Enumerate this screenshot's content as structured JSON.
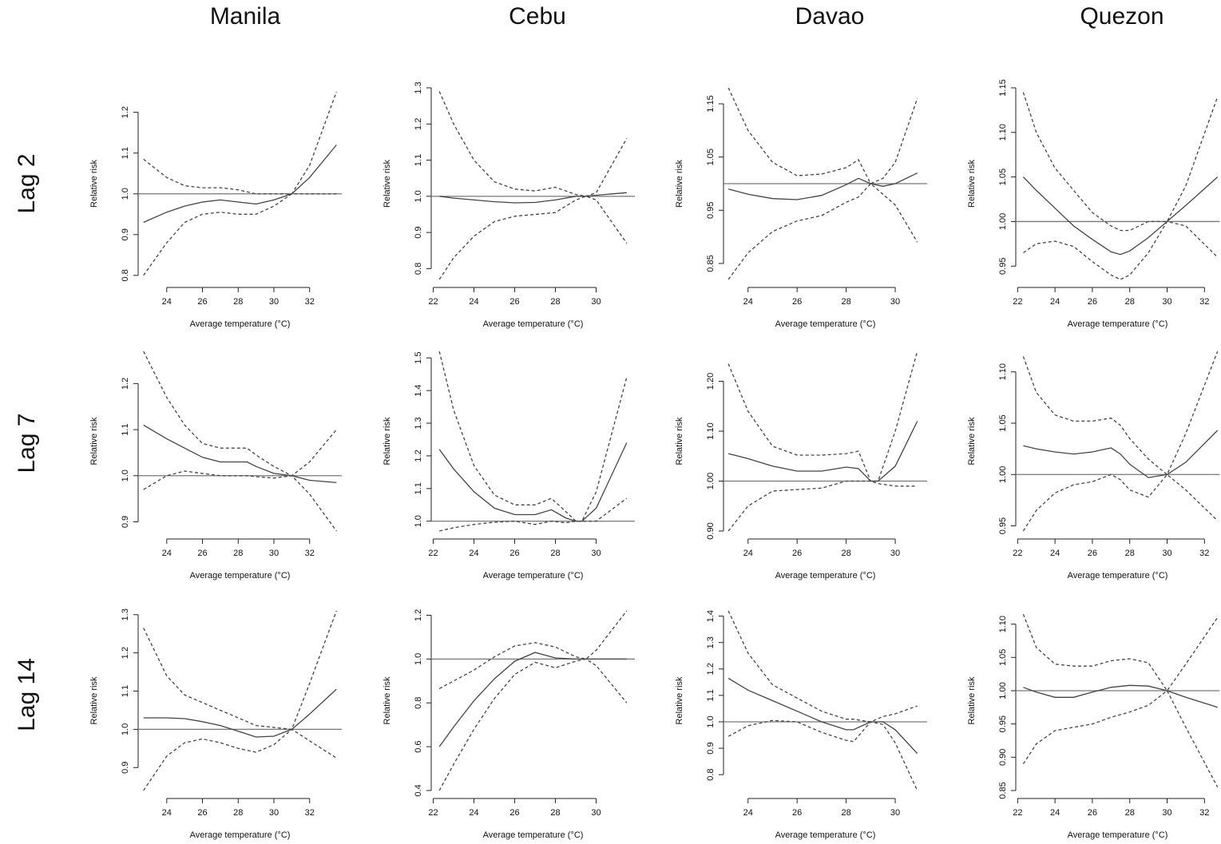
{
  "column_titles": [
    "Manila",
    "Cebu",
    "Davao",
    "Quezon"
  ],
  "row_titles": [
    "Lag 2",
    "Lag 7",
    "Lag 14"
  ],
  "chart_data": [
    {
      "type": "line",
      "xlabel": "Average temperature (°C)",
      "ylabel": "Relative risk",
      "xlim": [
        22.4,
        33.8
      ],
      "xticks": [
        24,
        26,
        28,
        30,
        32
      ],
      "ylim": [
        0.79,
        1.26
      ],
      "yticks": [
        0.8,
        0.9,
        {
          "value": 1,
          "label": "1.0"
        },
        1.1,
        1.2
      ],
      "hline": 1,
      "x": [
        22.7,
        24,
        25,
        26,
        27,
        28,
        29,
        30,
        31,
        32,
        33.5
      ],
      "series": [
        {
          "style": "solid",
          "color": "#444444",
          "values": [
            0.93,
            0.955,
            0.97,
            0.98,
            0.985,
            0.98,
            0.975,
            0.985,
            1.0,
            1.04,
            1.12
          ]
        },
        {
          "style": "dashed",
          "color": "#444444",
          "values": [
            1.085,
            1.04,
            1.02,
            1.015,
            1.015,
            1.01,
            1.0,
            1.0,
            1.0,
            1.07,
            1.25
          ]
        },
        {
          "style": "dashed",
          "color": "#444444",
          "values": [
            0.8,
            0.88,
            0.93,
            0.95,
            0.955,
            0.95,
            0.95,
            0.97,
            1.0,
            1.0,
            1.0
          ]
        }
      ]
    },
    {
      "type": "line",
      "xlabel": "Average temperature (°C)",
      "ylabel": "Relative risk",
      "xlim": [
        21.9,
        31.9
      ],
      "xticks": [
        22,
        24,
        26,
        28,
        30
      ],
      "ylim": [
        0.77,
        1.3
      ],
      "yticks": [
        0.8,
        0.9,
        {
          "value": 1,
          "label": "1.0"
        },
        1.1,
        1.2,
        1.3
      ],
      "hline": 1,
      "x": [
        22.3,
        23,
        24,
        25,
        26,
        27,
        28,
        29,
        29.5,
        30,
        31.5
      ],
      "series": [
        {
          "style": "solid",
          "color": "#444444",
          "values": [
            1.0,
            0.995,
            0.99,
            0.985,
            0.982,
            0.983,
            0.99,
            1.0,
            1.0,
            1.003,
            1.01
          ]
        },
        {
          "style": "dashed",
          "color": "#444444",
          "values": [
            1.29,
            1.2,
            1.1,
            1.04,
            1.02,
            1.015,
            1.025,
            1.005,
            1.0,
            1.01,
            1.16
          ]
        },
        {
          "style": "dashed",
          "color": "#444444",
          "values": [
            0.77,
            0.83,
            0.89,
            0.93,
            0.945,
            0.95,
            0.955,
            0.99,
            1.0,
            0.99,
            0.87
          ]
        }
      ]
    },
    {
      "type": "line",
      "xlabel": "Average temperature (°C)",
      "ylabel": "Relative risk",
      "xlim": [
        23,
        31.3
      ],
      "xticks": [
        24,
        26,
        28,
        30
      ],
      "ylim": [
        0.82,
        1.18
      ],
      "yticks": [
        0.85,
        0.95,
        1.05,
        1.15
      ],
      "hline": 1,
      "x": [
        23.2,
        24,
        25,
        26,
        27,
        28,
        28.5,
        29,
        29.5,
        30,
        30.9
      ],
      "series": [
        {
          "style": "solid",
          "color": "#444444",
          "values": [
            0.99,
            0.98,
            0.972,
            0.97,
            0.978,
            0.998,
            1.01,
            1.0,
            0.995,
            1.0,
            1.02
          ]
        },
        {
          "style": "dashed",
          "color": "#444444",
          "values": [
            1.18,
            1.1,
            1.04,
            1.015,
            1.018,
            1.03,
            1.045,
            1.0,
            1.01,
            1.04,
            1.16
          ]
        },
        {
          "style": "dashed",
          "color": "#444444",
          "values": [
            0.82,
            0.87,
            0.91,
            0.93,
            0.94,
            0.965,
            0.975,
            1.0,
            0.98,
            0.96,
            0.89
          ]
        }
      ]
    },
    {
      "type": "line",
      "xlabel": "Average temperature (°C)",
      "ylabel": "Relative risk",
      "xlim": [
        21.9,
        32.8
      ],
      "xticks": [
        22,
        24,
        26,
        28,
        30,
        32
      ],
      "ylim": [
        0.935,
        1.15
      ],
      "yticks": [
        0.95,
        {
          "value": 1,
          "label": "1.00"
        },
        1.05,
        {
          "value": 1.1,
          "label": "1.10"
        },
        1.15
      ],
      "hline": 1,
      "x": [
        22.3,
        23,
        24,
        25,
        26,
        27,
        27.5,
        28,
        29,
        30,
        31,
        32.7
      ],
      "series": [
        {
          "style": "solid",
          "color": "#444444",
          "values": [
            1.05,
            1.035,
            1.015,
            0.995,
            0.98,
            0.966,
            0.963,
            0.967,
            0.982,
            1.0,
            1.018,
            1.05
          ]
        },
        {
          "style": "dashed",
          "color": "#444444",
          "values": [
            1.145,
            1.1,
            1.06,
            1.035,
            1.01,
            0.995,
            0.99,
            0.99,
            1.0,
            1.0,
            1.04,
            1.14
          ]
        },
        {
          "style": "dashed",
          "color": "#444444",
          "values": [
            0.965,
            0.975,
            0.978,
            0.972,
            0.955,
            0.94,
            0.935,
            0.94,
            0.965,
            1.0,
            0.995,
            0.96
          ]
        }
      ]
    },
    {
      "type": "line",
      "xlabel": "Average temperature (°C)",
      "ylabel": "Relative risk",
      "xlim": [
        22.4,
        33.8
      ],
      "xticks": [
        24,
        26,
        28,
        30,
        32
      ],
      "ylim": [
        0.88,
        1.27
      ],
      "yticks": [
        0.9,
        {
          "value": 1,
          "label": "1.0"
        },
        1.1,
        1.2
      ],
      "hline": 1,
      "x": [
        22.7,
        24,
        25,
        26,
        27,
        28,
        28.5,
        29,
        30,
        31,
        32,
        33.5
      ],
      "series": [
        {
          "style": "solid",
          "color": "#444444",
          "values": [
            1.11,
            1.08,
            1.06,
            1.04,
            1.03,
            1.03,
            1.03,
            1.02,
            1.005,
            1.0,
            0.99,
            0.985
          ]
        },
        {
          "style": "dashed",
          "color": "#444444",
          "values": [
            1.27,
            1.17,
            1.11,
            1.07,
            1.06,
            1.06,
            1.06,
            1.045,
            1.02,
            1.0,
            1.03,
            1.1
          ]
        },
        {
          "style": "dashed",
          "color": "#444444",
          "values": [
            0.97,
            1.0,
            1.01,
            1.005,
            1.0,
            1.0,
            1.0,
            0.998,
            0.995,
            1.0,
            0.96,
            0.88
          ]
        }
      ]
    },
    {
      "type": "line",
      "xlabel": "Average temperature (°C)",
      "ylabel": "Relative risk",
      "xlim": [
        21.9,
        31.9
      ],
      "xticks": [
        22,
        24,
        26,
        28,
        30
      ],
      "ylim": [
        0.97,
        1.52
      ],
      "yticks": [
        {
          "value": 1,
          "label": "1.0"
        },
        1.1,
        1.2,
        1.3,
        1.4,
        1.5
      ],
      "hline": 1,
      "x": [
        22.3,
        23,
        24,
        25,
        26,
        27,
        27.8,
        28.5,
        29,
        29.3,
        30,
        31.5
      ],
      "series": [
        {
          "style": "solid",
          "color": "#444444",
          "values": [
            1.22,
            1.16,
            1.09,
            1.04,
            1.02,
            1.02,
            1.035,
            1.01,
            1.0,
            1.0,
            1.04,
            1.24
          ]
        },
        {
          "style": "dashed",
          "color": "#444444",
          "values": [
            1.52,
            1.34,
            1.17,
            1.08,
            1.05,
            1.05,
            1.07,
            1.03,
            1.0,
            1.0,
            1.09,
            1.44
          ]
        },
        {
          "style": "dashed",
          "color": "#444444",
          "values": [
            0.97,
            0.98,
            0.99,
            0.997,
            1.0,
            0.99,
            1.0,
            0.995,
            1.0,
            1.0,
            1.0,
            1.07
          ]
        }
      ]
    },
    {
      "type": "line",
      "xlabel": "Average temperature (°C)",
      "ylabel": "Relative risk",
      "xlim": [
        23,
        31.3
      ],
      "xticks": [
        24,
        26,
        28,
        30
      ],
      "ylim": [
        0.9,
        1.26
      ],
      "yticks": [
        {
          "value": 0.9,
          "label": "0.90"
        },
        {
          "value": 1,
          "label": "1.00"
        },
        {
          "value": 1.1,
          "label": "1.10"
        },
        {
          "value": 1.2,
          "label": "1.20"
        }
      ],
      "hline": 1,
      "x": [
        23.2,
        24,
        25,
        26,
        27,
        28,
        28.5,
        29,
        29.3,
        30,
        30.9
      ],
      "series": [
        {
          "style": "solid",
          "color": "#444444",
          "values": [
            1.055,
            1.045,
            1.03,
            1.02,
            1.02,
            1.028,
            1.025,
            1.0,
            1.0,
            1.03,
            1.12
          ]
        },
        {
          "style": "dashed",
          "color": "#444444",
          "values": [
            1.235,
            1.14,
            1.07,
            1.052,
            1.052,
            1.055,
            1.06,
            1.0,
            1.0,
            1.1,
            1.26
          ]
        },
        {
          "style": "dashed",
          "color": "#444444",
          "values": [
            0.9,
            0.95,
            0.98,
            0.983,
            0.986,
            1.0,
            1.0,
            1.0,
            0.995,
            0.99,
            0.99
          ]
        }
      ]
    },
    {
      "type": "line",
      "xlabel": "Average temperature (°C)",
      "ylabel": "Relative risk",
      "xlim": [
        21.9,
        32.8
      ],
      "xticks": [
        22,
        24,
        26,
        28,
        30,
        32
      ],
      "ylim": [
        0.945,
        1.12
      ],
      "yticks": [
        0.95,
        {
          "value": 1,
          "label": "1.00"
        },
        1.05,
        {
          "value": 1.1,
          "label": "1.10"
        }
      ],
      "hline": 1,
      "x": [
        22.3,
        23,
        24,
        25,
        26,
        27,
        27.5,
        28,
        29,
        30,
        31,
        32.7
      ],
      "series": [
        {
          "style": "solid",
          "color": "#444444",
          "values": [
            1.028,
            1.025,
            1.022,
            1.02,
            1.022,
            1.026,
            1.02,
            1.01,
            0.997,
            1.0,
            1.012,
            1.043
          ]
        },
        {
          "style": "dashed",
          "color": "#444444",
          "values": [
            1.115,
            1.08,
            1.058,
            1.052,
            1.052,
            1.055,
            1.048,
            1.035,
            1.015,
            1.0,
            1.04,
            1.12
          ]
        },
        {
          "style": "dashed",
          "color": "#444444",
          "values": [
            0.945,
            0.965,
            0.982,
            0.99,
            0.993,
            1.0,
            0.995,
            0.985,
            0.978,
            1.0,
            0.985,
            0.955
          ]
        }
      ]
    },
    {
      "type": "line",
      "xlabel": "Average temperature (°C)",
      "ylabel": "Relative risk",
      "xlim": [
        22.4,
        33.8
      ],
      "xticks": [
        24,
        26,
        28,
        30,
        32
      ],
      "ylim": [
        0.84,
        1.31
      ],
      "yticks": [
        0.9,
        {
          "value": 1,
          "label": "1.0"
        },
        1.1,
        1.2,
        1.3
      ],
      "hline": 1,
      "x": [
        22.7,
        24,
        25,
        26,
        27,
        28,
        29,
        30,
        31,
        32,
        33.5
      ],
      "series": [
        {
          "style": "solid",
          "color": "#444444",
          "values": [
            1.03,
            1.03,
            1.028,
            1.02,
            1.01,
            0.995,
            0.98,
            0.982,
            1.0,
            1.04,
            1.105
          ]
        },
        {
          "style": "dashed",
          "color": "#444444",
          "values": [
            1.265,
            1.14,
            1.09,
            1.07,
            1.05,
            1.03,
            1.01,
            1.005,
            1.0,
            1.12,
            1.31
          ]
        },
        {
          "style": "dashed",
          "color": "#444444",
          "values": [
            0.84,
            0.93,
            0.965,
            0.975,
            0.965,
            0.95,
            0.94,
            0.96,
            1.0,
            0.97,
            0.925
          ]
        }
      ]
    },
    {
      "type": "line",
      "xlabel": "Average temperature (°C)",
      "ylabel": "Relative risk",
      "xlim": [
        21.9,
        31.9
      ],
      "xticks": [
        22,
        24,
        26,
        28,
        30
      ],
      "ylim": [
        0.4,
        1.22
      ],
      "yticks": [
        0.4,
        0.6,
        0.8,
        {
          "value": 1,
          "label": "1.0"
        },
        1.2
      ],
      "hline": 1,
      "x": [
        22.3,
        23,
        24,
        25,
        26,
        27,
        28,
        29,
        29.5,
        30,
        31.5
      ],
      "series": [
        {
          "style": "solid",
          "color": "#444444",
          "values": [
            0.6,
            0.69,
            0.81,
            0.91,
            0.99,
            1.03,
            1.005,
            1.0,
            1.0,
            1.0,
            1.0
          ]
        },
        {
          "style": "dashed",
          "color": "#444444",
          "values": [
            0.865,
            0.9,
            0.95,
            1.01,
            1.06,
            1.075,
            1.055,
            1.01,
            1.0,
            1.04,
            1.22
          ]
        },
        {
          "style": "dashed",
          "color": "#444444",
          "values": [
            0.4,
            0.52,
            0.68,
            0.82,
            0.93,
            0.985,
            0.96,
            0.99,
            1.0,
            0.97,
            0.8
          ]
        }
      ]
    },
    {
      "type": "line",
      "xlabel": "Average temperature (°C)",
      "ylabel": "Relative risk",
      "xlim": [
        23,
        31.3
      ],
      "xticks": [
        24,
        26,
        28,
        30
      ],
      "ylim": [
        0.74,
        1.42
      ],
      "yticks": [
        0.8,
        0.9,
        {
          "value": 1,
          "label": "1.0"
        },
        1.1,
        1.2,
        1.3,
        1.4
      ],
      "hline": 1,
      "x": [
        23.2,
        24,
        25,
        26,
        27,
        28,
        28.3,
        29,
        29.5,
        30,
        30.9
      ],
      "series": [
        {
          "style": "solid",
          "color": "#444444",
          "values": [
            1.165,
            1.12,
            1.08,
            1.04,
            1.0,
            0.97,
            0.97,
            1.0,
            1.0,
            0.97,
            0.88
          ]
        },
        {
          "style": "dashed",
          "color": "#444444",
          "values": [
            1.42,
            1.26,
            1.14,
            1.09,
            1.04,
            1.01,
            1.01,
            1.0,
            1.02,
            1.03,
            1.06
          ]
        },
        {
          "style": "dashed",
          "color": "#444444",
          "values": [
            0.945,
            0.985,
            1.005,
            1.0,
            0.96,
            0.93,
            0.925,
            1.0,
            0.99,
            0.92,
            0.74
          ]
        }
      ]
    },
    {
      "type": "line",
      "xlabel": "Average temperature (°C)",
      "ylabel": "Relative risk",
      "xlim": [
        21.9,
        32.8
      ],
      "xticks": [
        22,
        24,
        26,
        28,
        30,
        32
      ],
      "ylim": [
        0.85,
        1.12
      ],
      "yticks": [
        0.85,
        {
          "value": 0.9,
          "label": "0.90"
        },
        0.95,
        {
          "value": 1,
          "label": "1.00"
        },
        1.05,
        {
          "value": 1.1,
          "label": "1.10"
        }
      ],
      "hline": 1,
      "x": [
        22.3,
        23,
        24,
        25,
        26,
        27,
        28,
        29,
        30,
        31,
        32.7
      ],
      "series": [
        {
          "style": "solid",
          "color": "#444444",
          "values": [
            1.005,
            0.998,
            0.99,
            0.99,
            0.998,
            1.005,
            1.008,
            1.007,
            1.0,
            0.99,
            0.975
          ]
        },
        {
          "style": "dashed",
          "color": "#444444",
          "values": [
            1.115,
            1.065,
            1.04,
            1.037,
            1.037,
            1.045,
            1.048,
            1.042,
            1.0,
            1.04,
            1.11
          ]
        },
        {
          "style": "dashed",
          "color": "#444444",
          "values": [
            0.89,
            0.92,
            0.94,
            0.945,
            0.95,
            0.96,
            0.968,
            0.978,
            1.0,
            0.945,
            0.855
          ]
        }
      ]
    }
  ]
}
